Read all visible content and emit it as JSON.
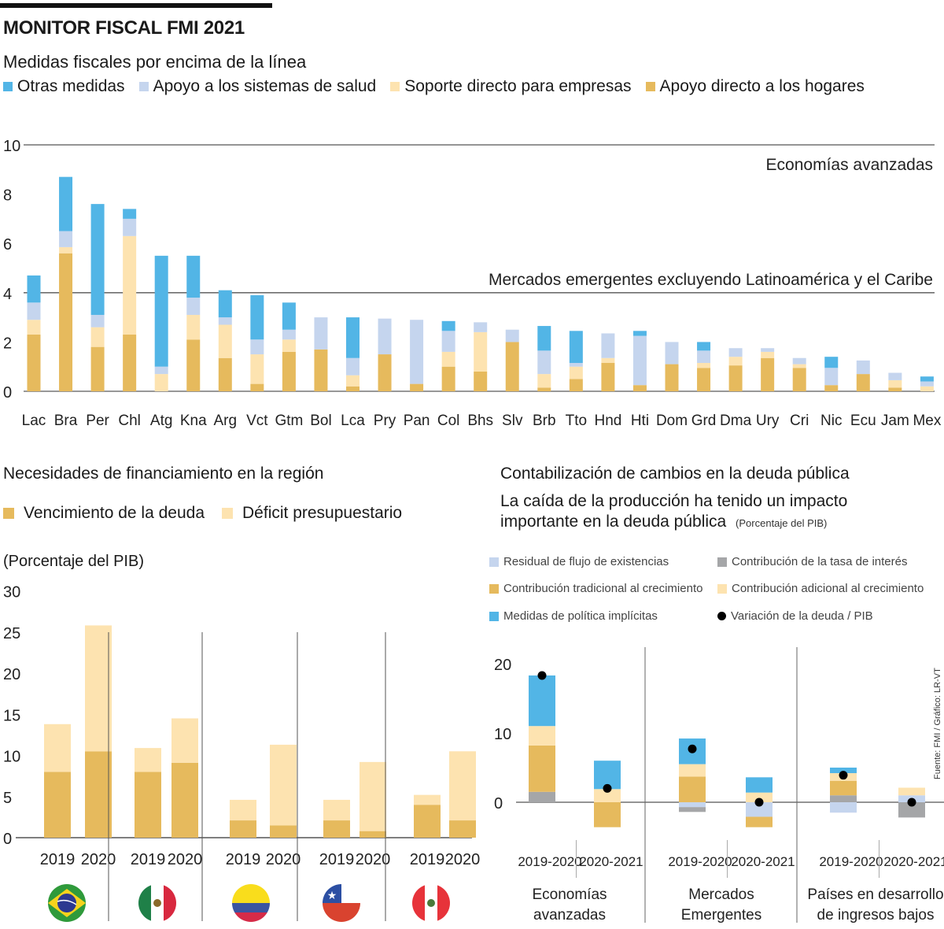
{
  "header": {
    "title": "MONITOR FISCAL FMI 2021"
  },
  "colors": {
    "otras": "#52b5e6",
    "salud": "#c5d5ee",
    "empresas": "#fde3b0",
    "hogares": "#e6ba5d",
    "interes": "#a5a6a8",
    "dot": "#000000"
  },
  "chart_data": [
    {
      "id": "medidas",
      "type": "bar",
      "stacked": true,
      "title": "Medidas fiscales por encima de la línea",
      "ylim": [
        0,
        10
      ],
      "yticks": [
        "0",
        "2",
        "4",
        "6",
        "8",
        "10"
      ],
      "reference_lines": [
        {
          "value": 10,
          "label": "Economías avanzadas"
        },
        {
          "value": 4,
          "label": "Mercados emergentes excluyendo Latinoamérica y el Caribe"
        }
      ],
      "legend": [
        {
          "key": "otras",
          "label": "Otras medidas"
        },
        {
          "key": "salud",
          "label": "Apoyo a los sistemas de salud"
        },
        {
          "key": "empresas",
          "label": "Soporte directo para empresas"
        },
        {
          "key": "hogares",
          "label": "Apoyo directo a los hogares"
        }
      ],
      "categories": [
        "Lac",
        "Bra",
        "Per",
        "Chl",
        "Atg",
        "Kna",
        "Arg",
        "Vct",
        "Gtm",
        "Bol",
        "Lca",
        "Pry",
        "Pan",
        "Col",
        "Bhs",
        "Slv",
        "Brb",
        "Tto",
        "Hnd",
        "Hti",
        "Dom",
        "Grd",
        "Dma",
        "Ury",
        "Cri",
        "Nic",
        "Ecu",
        "Jam",
        "Mex"
      ],
      "series": [
        {
          "name": "Apoyo directo a los hogares",
          "key": "hogares",
          "values": [
            2.3,
            5.6,
            1.8,
            2.3,
            0.0,
            2.1,
            1.35,
            0.3,
            1.6,
            1.7,
            0.2,
            1.5,
            0.3,
            1.0,
            0.8,
            2.0,
            0.15,
            0.5,
            1.15,
            0.25,
            1.1,
            0.95,
            1.05,
            1.35,
            0.95,
            0.25,
            0.7,
            0.15,
            0.0
          ]
        },
        {
          "name": "Soporte directo para empresas",
          "key": "empresas",
          "values": [
            0.6,
            0.25,
            0.8,
            4.0,
            0.7,
            1.0,
            1.35,
            1.2,
            0.5,
            0.0,
            0.45,
            0.0,
            0.0,
            0.6,
            1.6,
            0.0,
            0.55,
            0.5,
            0.2,
            0.0,
            0.0,
            0.2,
            0.35,
            0.25,
            0.15,
            0.0,
            0.0,
            0.3,
            0.2
          ]
        },
        {
          "name": "Apoyo a los sistemas de salud",
          "key": "salud",
          "values": [
            0.7,
            0.65,
            0.5,
            0.7,
            0.3,
            0.7,
            0.3,
            0.6,
            0.4,
            1.3,
            0.7,
            1.45,
            2.6,
            0.85,
            0.4,
            0.5,
            0.95,
            0.15,
            1.0,
            2.0,
            0.9,
            0.5,
            0.35,
            0.15,
            0.25,
            0.7,
            0.55,
            0.3,
            0.2
          ]
        },
        {
          "name": "Otras medidas",
          "key": "otras",
          "values": [
            1.1,
            2.2,
            4.5,
            0.4,
            4.5,
            1.7,
            1.1,
            1.8,
            1.1,
            0.0,
            1.65,
            0.0,
            0.0,
            0.4,
            0.0,
            0.0,
            1.0,
            1.3,
            0.0,
            0.2,
            0.0,
            0.35,
            0.0,
            0.0,
            0.0,
            0.45,
            0.0,
            0.0,
            0.2
          ]
        }
      ]
    },
    {
      "id": "financiamiento",
      "type": "bar",
      "stacked": true,
      "title": "Necesidades de financiamiento en la región",
      "ylabel": "(Porcentaje del PIB)",
      "ylim": [
        0,
        30
      ],
      "yticks": [
        "0",
        "5",
        "10",
        "15",
        "20",
        "25",
        "30"
      ],
      "legend": [
        {
          "key": "hogares",
          "label": "Vencimiento de la deuda"
        },
        {
          "key": "empresas",
          "label": "Déficit presupuestario"
        }
      ],
      "groups": [
        {
          "country": "Brasil",
          "flag": "brazil-flag",
          "bars": [
            {
              "year": "2019",
              "vencimiento": 8.0,
              "deficit": 5.8
            },
            {
              "year": "2020",
              "vencimiento": 10.5,
              "deficit": 15.3
            }
          ]
        },
        {
          "country": "México",
          "flag": "mexico-flag",
          "bars": [
            {
              "year": "2019",
              "vencimiento": 8.0,
              "deficit": 2.9
            },
            {
              "year": "2020",
              "vencimiento": 9.1,
              "deficit": 5.4
            }
          ]
        },
        {
          "country": "Colombia",
          "flag": "colombia-flag",
          "bars": [
            {
              "year": "2019",
              "vencimiento": 2.1,
              "deficit": 2.5
            },
            {
              "year": "2020",
              "vencimiento": 1.5,
              "deficit": 9.8
            }
          ]
        },
        {
          "country": "Chile",
          "flag": "chile-flag",
          "bars": [
            {
              "year": "2019",
              "vencimiento": 2.1,
              "deficit": 2.5
            },
            {
              "year": "2020",
              "vencimiento": 0.8,
              "deficit": 8.4
            }
          ]
        },
        {
          "country": "Perú",
          "flag": "peru-flag",
          "bars": [
            {
              "year": "2019",
              "vencimiento": 4.0,
              "deficit": 1.2
            },
            {
              "year": "2020",
              "vencimiento": 2.1,
              "deficit": 8.4
            }
          ]
        }
      ]
    },
    {
      "id": "deuda",
      "type": "bar",
      "stacked": true,
      "title": "Contabilización de cambios en la deuda pública",
      "subtitle": "La caída de la producción ha tenido un impacto importante en la deuda pública",
      "unit_note": "(Porcentaje del PIB)",
      "ylim": [
        -5,
        22
      ],
      "yticks": [
        "0",
        "10",
        "20"
      ],
      "legend": [
        {
          "key": "salud",
          "label": "Residual de flujo de existencias"
        },
        {
          "key": "interes",
          "label": "Contribución de la tasa de interés"
        },
        {
          "key": "hogares",
          "label": "Contribución tradicional al crecimiento"
        },
        {
          "key": "empresas",
          "label": "Contribución adicional al crecimiento"
        },
        {
          "key": "otras",
          "label": "Medidas de política implícitas"
        },
        {
          "key": "dot",
          "label": "Variación de la deuda / PIB"
        }
      ],
      "groups": [
        {
          "label": "Economías avanzadas",
          "bars": [
            {
              "period": "2019-2020",
              "segments": [
                {
                  "key": "interes",
                  "value": 1.5
                },
                {
                  "key": "hogares",
                  "value": 6.7
                },
                {
                  "key": "empresas",
                  "value": 2.8
                },
                {
                  "key": "otras",
                  "value": 7.3
                }
              ],
              "neg_segments": [],
              "debt_change": 18.3
            },
            {
              "period": "2020-2021",
              "segments": [
                {
                  "key": "empresas",
                  "value": 1.9
                },
                {
                  "key": "otras",
                  "value": 4.1
                }
              ],
              "neg_segments": [
                {
                  "key": "hogares",
                  "value": -3.6
                }
              ],
              "debt_change": 2.0
            }
          ]
        },
        {
          "label": "Mercados Emergentes",
          "bars": [
            {
              "period": "2019-2020",
              "segments": [
                {
                  "key": "hogares",
                  "value": 3.7
                },
                {
                  "key": "empresas",
                  "value": 1.8
                },
                {
                  "key": "otras",
                  "value": 3.7
                }
              ],
              "neg_segments": [
                {
                  "key": "salud",
                  "value": -0.7
                },
                {
                  "key": "interes",
                  "value": -0.7
                }
              ],
              "debt_change": 7.7
            },
            {
              "period": "2020-2021",
              "segments": [
                {
                  "key": "empresas",
                  "value": 1.4
                },
                {
                  "key": "otras",
                  "value": 2.2
                }
              ],
              "neg_segments": [
                {
                  "key": "salud",
                  "value": -2.1
                },
                {
                  "key": "hogares",
                  "value": -1.5
                }
              ],
              "debt_change": 0.0
            },
            {
              "period_gap": true
            }
          ]
        },
        {
          "label": "Países en desarrollo de ingresos bajos",
          "bars": [
            {
              "period": "2019-2020",
              "segments": [
                {
                  "key": "interes",
                  "value": 1.0
                },
                {
                  "key": "hogares",
                  "value": 2.1
                },
                {
                  "key": "empresas",
                  "value": 1.1
                },
                {
                  "key": "otras",
                  "value": 0.8
                }
              ],
              "neg_segments": [
                {
                  "key": "salud",
                  "value": -1.5
                }
              ],
              "debt_change": 3.9
            },
            {
              "period": "2020-2021",
              "segments": [
                {
                  "key": "salud",
                  "value": 1.0
                },
                {
                  "key": "empresas",
                  "value": 1.1
                }
              ],
              "neg_segments": [
                {
                  "key": "interes",
                  "value": -2.2
                }
              ],
              "debt_change": 0.0
            }
          ]
        }
      ]
    }
  ],
  "source": "Fuente: FMI  / Gráfico: LR-VT"
}
